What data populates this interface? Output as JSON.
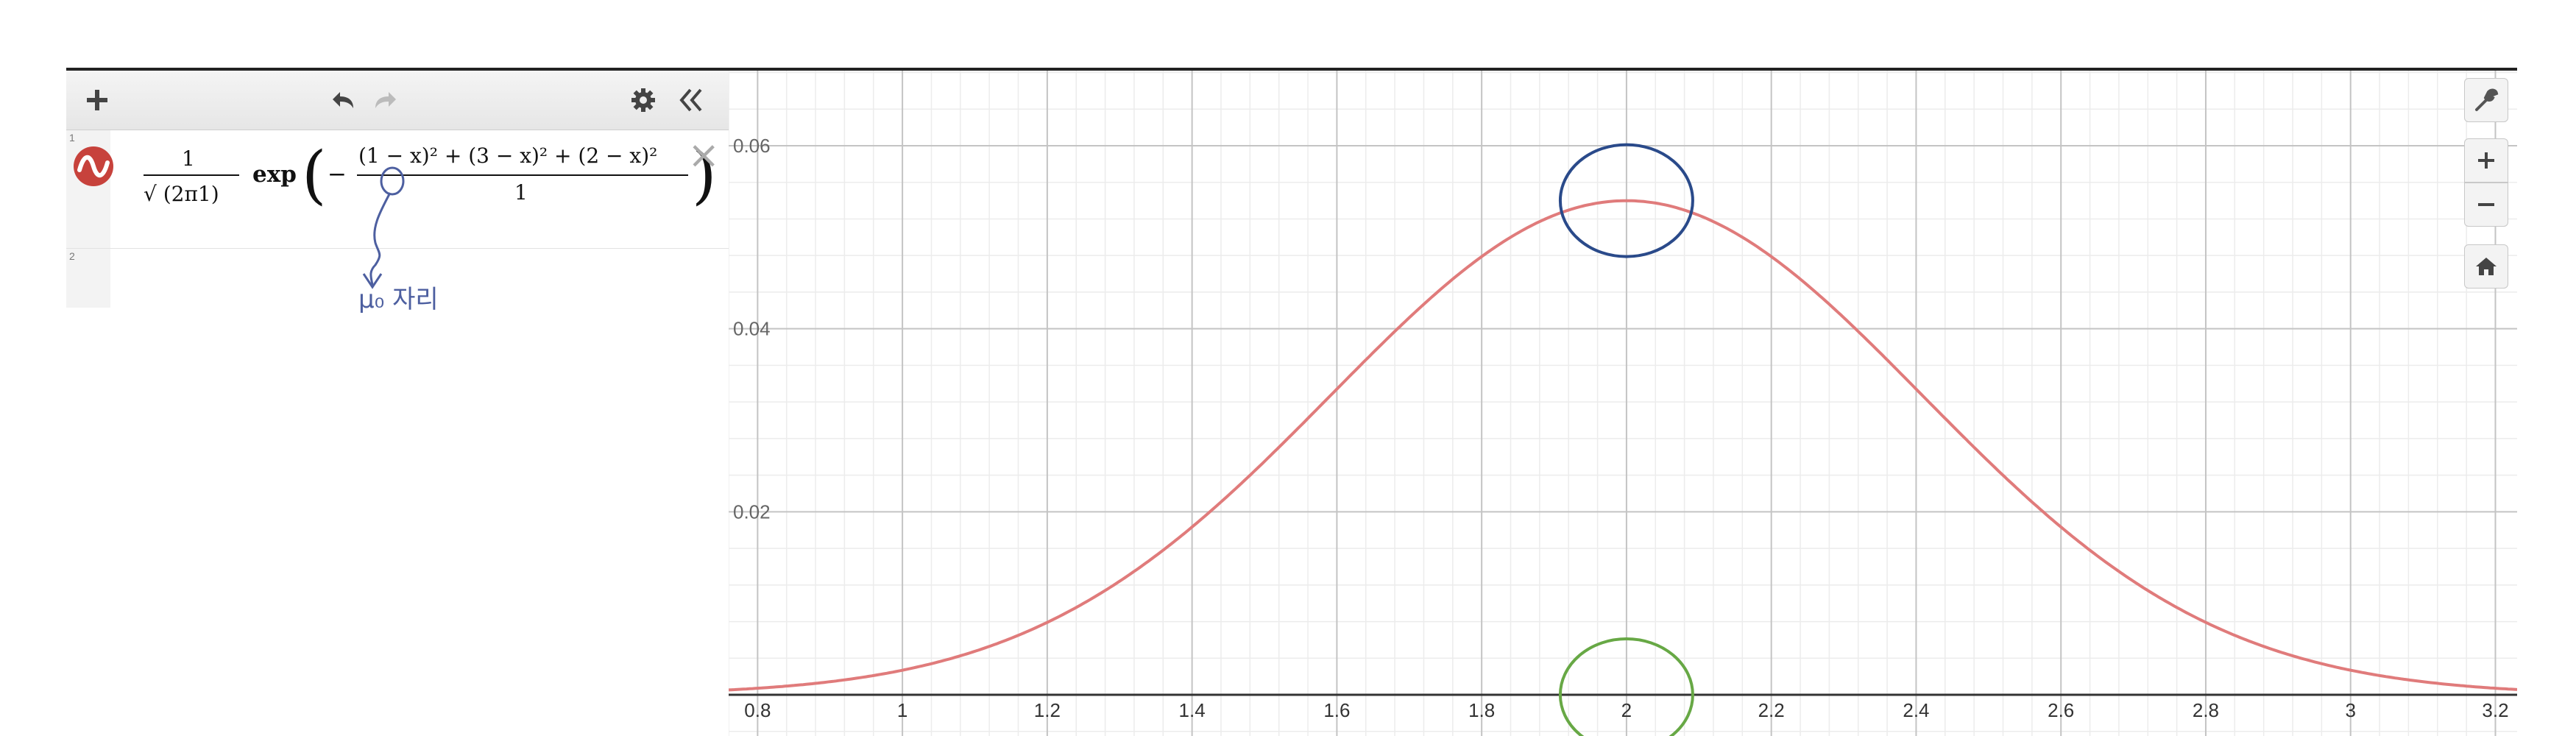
{
  "expressions": [
    {
      "index": "1",
      "latex_parts": {
        "coef_num": "1",
        "coef_den": "√ (2π1)",
        "fn": "exp",
        "minus": "−",
        "frac_num": "(1 − x)² + (3 − x)² + (2 − x)²",
        "frac_den": "1"
      },
      "color": "#c7423c"
    },
    {
      "index": "2",
      "latex_parts": null
    }
  ],
  "toolbar": {
    "icons": [
      "add-icon",
      "undo-icon",
      "redo-icon",
      "gear-icon",
      "collapse-icon"
    ]
  },
  "annotation": {
    "handwritten_note": "μ₀ 자리"
  },
  "graph_controls": [
    "wrench-icon",
    "zoom-in-icon",
    "zoom-out-icon",
    "home-icon"
  ],
  "chart_data": {
    "type": "line",
    "function": "1/sqrt(2*pi*1) * exp(-((1-x)^2 + (3-x)^2 + (2-x)^2)/1)",
    "xlim": [
      0.76,
      3.23
    ],
    "ylim": [
      -0.0045,
      0.0682
    ],
    "x_ticks": [
      "0.8",
      "1",
      "1.2",
      "1.4",
      "1.6",
      "1.8",
      "2",
      "2.2",
      "2.4",
      "2.6",
      "2.8",
      "3",
      "3.2"
    ],
    "x_tick_values": [
      0.8,
      1.0,
      1.2,
      1.4,
      1.6,
      1.8,
      2.0,
      2.2,
      2.4,
      2.6,
      2.8,
      3.0,
      3.2
    ],
    "y_ticks": [
      "0.02",
      "0.04",
      "0.06"
    ],
    "y_tick_values": [
      0.02,
      0.04,
      0.06
    ],
    "series": [
      {
        "color": "#e07b7b",
        "x": [
          0.76,
          0.8,
          1.0,
          1.2,
          1.4,
          1.6,
          1.8,
          2.0,
          2.2,
          2.4,
          2.6,
          2.8,
          3.0,
          3.2,
          3.23
        ],
        "y": [
          0.0005,
          0.0007,
          0.0027,
          0.0073,
          0.0176,
          0.0322,
          0.0472,
          0.054,
          0.0472,
          0.0322,
          0.0176,
          0.0073,
          0.0027,
          0.0007,
          0.0005
        ]
      }
    ],
    "grid": true,
    "highlight_circles": [
      {
        "x": 2.0,
        "y": 0.054,
        "color": "#2a4a8a"
      },
      {
        "x": 2.0,
        "y": 0.0,
        "color": "#67a845"
      }
    ]
  }
}
